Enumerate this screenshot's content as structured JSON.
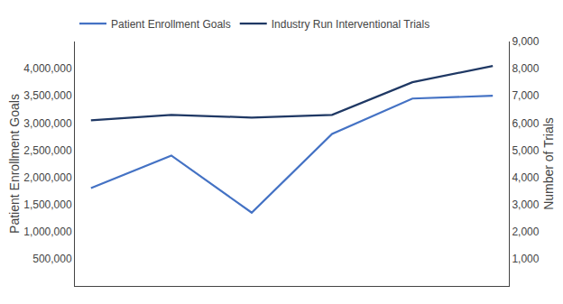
{
  "chart_data": {
    "type": "line",
    "x": [
      0,
      1,
      2,
      3,
      4,
      5
    ],
    "xlim": [
      -0.2,
      5.2
    ],
    "series": [
      {
        "name": "Patient Enrollment Goals",
        "color": "#4472C4",
        "axis": "y",
        "values": [
          1800000,
          2400000,
          1350000,
          2800000,
          3450000,
          3500000
        ]
      },
      {
        "name": "Industry Run Interventional Trials",
        "color": "#1F3864",
        "axis": "y2",
        "values": [
          6100,
          6300,
          6200,
          6300,
          7500,
          8100
        ]
      }
    ],
    "ylabel": "Patient Enrollment Goals",
    "y2label": "Number of Trials",
    "ylim": [
      0,
      4500000
    ],
    "yticks": [
      {
        "value": 500000,
        "label": "500,000"
      },
      {
        "value": 1000000,
        "label": "1,000,000"
      },
      {
        "value": 1500000,
        "label": "1,500,000"
      },
      {
        "value": 2000000,
        "label": "2,000,000"
      },
      {
        "value": 2500000,
        "label": "2,500,000"
      },
      {
        "value": 3000000,
        "label": "3,000,000"
      },
      {
        "value": 3500000,
        "label": "3,500,000"
      },
      {
        "value": 4000000,
        "label": "4,000,000"
      }
    ],
    "y2lim": [
      0,
      9000
    ],
    "y2ticks": [
      {
        "value": 1000,
        "label": "1,000"
      },
      {
        "value": 2000,
        "label": "2,000"
      },
      {
        "value": 3000,
        "label": "3,000"
      },
      {
        "value": 4000,
        "label": "4,000"
      },
      {
        "value": 5000,
        "label": "5,000"
      },
      {
        "value": 6000,
        "label": "6,000"
      },
      {
        "value": 7000,
        "label": "7,000"
      },
      {
        "value": 8000,
        "label": "8,000"
      },
      {
        "value": 9000,
        "label": "9,000"
      }
    ],
    "grid": false,
    "legend": "upper left",
    "tick_labels": "y"
  }
}
